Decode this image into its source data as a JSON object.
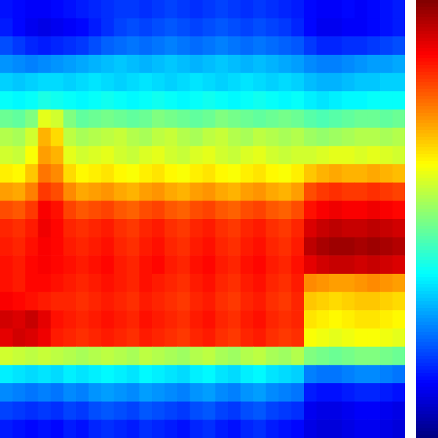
{
  "chart_data": {
    "type": "heatmap",
    "tick_labels": false,
    "grid": false,
    "xlim": [
      0,
      32
    ],
    "ylim": [
      0,
      24
    ],
    "colorbar_range": [
      0,
      1
    ],
    "cells": [
      [
        0.14,
        0.13,
        0.12,
        0.12,
        0.13,
        0.14,
        0.15,
        0.16,
        0.17,
        0.18,
        0.18,
        0.17,
        0.18,
        0.19,
        0.18,
        0.17,
        0.18,
        0.19,
        0.18,
        0.17,
        0.18,
        0.17,
        0.16,
        0.15,
        0.13,
        0.12,
        0.12,
        0.13,
        0.12,
        0.13,
        0.14,
        0.15
      ],
      [
        0.15,
        0.13,
        0.11,
        0.1,
        0.11,
        0.12,
        0.13,
        0.15,
        0.17,
        0.19,
        0.2,
        0.19,
        0.2,
        0.21,
        0.2,
        0.19,
        0.2,
        0.21,
        0.2,
        0.19,
        0.2,
        0.19,
        0.18,
        0.16,
        0.13,
        0.11,
        0.11,
        0.12,
        0.12,
        0.13,
        0.14,
        0.15
      ],
      [
        0.2,
        0.18,
        0.16,
        0.15,
        0.16,
        0.17,
        0.18,
        0.2,
        0.22,
        0.23,
        0.24,
        0.23,
        0.24,
        0.25,
        0.24,
        0.23,
        0.24,
        0.25,
        0.24,
        0.23,
        0.24,
        0.23,
        0.22,
        0.21,
        0.18,
        0.16,
        0.16,
        0.17,
        0.17,
        0.18,
        0.19,
        0.2
      ],
      [
        0.27,
        0.26,
        0.25,
        0.26,
        0.27,
        0.28,
        0.29,
        0.3,
        0.31,
        0.32,
        0.31,
        0.3,
        0.31,
        0.32,
        0.31,
        0.3,
        0.31,
        0.32,
        0.31,
        0.3,
        0.31,
        0.3,
        0.29,
        0.28,
        0.26,
        0.25,
        0.25,
        0.26,
        0.27,
        0.28,
        0.28,
        0.29
      ],
      [
        0.33,
        0.32,
        0.33,
        0.34,
        0.34,
        0.33,
        0.34,
        0.35,
        0.34,
        0.33,
        0.34,
        0.35,
        0.34,
        0.33,
        0.34,
        0.35,
        0.34,
        0.33,
        0.34,
        0.35,
        0.34,
        0.33,
        0.34,
        0.33,
        0.31,
        0.3,
        0.3,
        0.31,
        0.32,
        0.32,
        0.33,
        0.33
      ],
      [
        0.38,
        0.37,
        0.38,
        0.4,
        0.39,
        0.38,
        0.37,
        0.38,
        0.39,
        0.38,
        0.37,
        0.38,
        0.39,
        0.38,
        0.37,
        0.38,
        0.39,
        0.38,
        0.37,
        0.38,
        0.39,
        0.38,
        0.37,
        0.38,
        0.36,
        0.35,
        0.36,
        0.37,
        0.37,
        0.38,
        0.38,
        0.38
      ],
      [
        0.48,
        0.47,
        0.5,
        0.6,
        0.58,
        0.5,
        0.47,
        0.48,
        0.49,
        0.48,
        0.47,
        0.48,
        0.5,
        0.49,
        0.48,
        0.47,
        0.48,
        0.5,
        0.49,
        0.48,
        0.47,
        0.48,
        0.49,
        0.48,
        0.46,
        0.45,
        0.46,
        0.47,
        0.48,
        0.48,
        0.47,
        0.48
      ],
      [
        0.55,
        0.54,
        0.58,
        0.7,
        0.66,
        0.56,
        0.54,
        0.55,
        0.56,
        0.57,
        0.55,
        0.54,
        0.56,
        0.57,
        0.55,
        0.54,
        0.56,
        0.57,
        0.55,
        0.54,
        0.56,
        0.55,
        0.54,
        0.55,
        0.53,
        0.52,
        0.53,
        0.54,
        0.55,
        0.55,
        0.54,
        0.55
      ],
      [
        0.58,
        0.57,
        0.62,
        0.72,
        0.7,
        0.6,
        0.58,
        0.59,
        0.6,
        0.58,
        0.57,
        0.59,
        0.6,
        0.58,
        0.57,
        0.59,
        0.6,
        0.58,
        0.57,
        0.59,
        0.6,
        0.58,
        0.57,
        0.58,
        0.58,
        0.59,
        0.6,
        0.6,
        0.59,
        0.6,
        0.59,
        0.58
      ],
      [
        0.64,
        0.63,
        0.68,
        0.76,
        0.74,
        0.66,
        0.63,
        0.64,
        0.65,
        0.63,
        0.62,
        0.64,
        0.65,
        0.63,
        0.62,
        0.64,
        0.65,
        0.63,
        0.62,
        0.64,
        0.65,
        0.63,
        0.62,
        0.64,
        0.68,
        0.7,
        0.71,
        0.7,
        0.7,
        0.71,
        0.7,
        0.69
      ],
      [
        0.72,
        0.71,
        0.75,
        0.82,
        0.8,
        0.74,
        0.71,
        0.72,
        0.73,
        0.71,
        0.7,
        0.72,
        0.73,
        0.71,
        0.7,
        0.72,
        0.73,
        0.71,
        0.7,
        0.72,
        0.73,
        0.71,
        0.7,
        0.72,
        0.8,
        0.82,
        0.83,
        0.82,
        0.82,
        0.83,
        0.82,
        0.81
      ],
      [
        0.8,
        0.79,
        0.82,
        0.88,
        0.86,
        0.81,
        0.79,
        0.8,
        0.81,
        0.79,
        0.78,
        0.8,
        0.81,
        0.79,
        0.78,
        0.8,
        0.81,
        0.79,
        0.78,
        0.8,
        0.81,
        0.79,
        0.78,
        0.8,
        0.86,
        0.88,
        0.89,
        0.88,
        0.88,
        0.89,
        0.88,
        0.87
      ],
      [
        0.84,
        0.83,
        0.85,
        0.89,
        0.87,
        0.84,
        0.83,
        0.84,
        0.85,
        0.83,
        0.82,
        0.84,
        0.85,
        0.83,
        0.82,
        0.84,
        0.85,
        0.83,
        0.82,
        0.84,
        0.85,
        0.83,
        0.82,
        0.84,
        0.91,
        0.93,
        0.94,
        0.93,
        0.93,
        0.94,
        0.93,
        0.92
      ],
      [
        0.85,
        0.84,
        0.86,
        0.88,
        0.87,
        0.85,
        0.84,
        0.85,
        0.86,
        0.84,
        0.83,
        0.85,
        0.86,
        0.84,
        0.83,
        0.85,
        0.86,
        0.84,
        0.83,
        0.85,
        0.86,
        0.84,
        0.83,
        0.85,
        0.94,
        0.96,
        0.97,
        0.97,
        0.96,
        0.97,
        0.96,
        0.95
      ],
      [
        0.86,
        0.85,
        0.87,
        0.88,
        0.87,
        0.86,
        0.85,
        0.86,
        0.87,
        0.85,
        0.84,
        0.86,
        0.87,
        0.85,
        0.84,
        0.86,
        0.87,
        0.85,
        0.84,
        0.86,
        0.87,
        0.85,
        0.84,
        0.86,
        0.9,
        0.92,
        0.93,
        0.93,
        0.92,
        0.93,
        0.92,
        0.91
      ],
      [
        0.86,
        0.85,
        0.87,
        0.87,
        0.86,
        0.85,
        0.84,
        0.85,
        0.86,
        0.85,
        0.84,
        0.86,
        0.85,
        0.84,
        0.83,
        0.85,
        0.86,
        0.84,
        0.83,
        0.85,
        0.86,
        0.84,
        0.83,
        0.85,
        0.74,
        0.73,
        0.72,
        0.72,
        0.73,
        0.74,
        0.73,
        0.72
      ],
      [
        0.88,
        0.87,
        0.86,
        0.85,
        0.84,
        0.84,
        0.83,
        0.84,
        0.85,
        0.84,
        0.83,
        0.85,
        0.84,
        0.83,
        0.82,
        0.84,
        0.85,
        0.83,
        0.82,
        0.84,
        0.85,
        0.83,
        0.82,
        0.84,
        0.68,
        0.67,
        0.66,
        0.67,
        0.68,
        0.68,
        0.67,
        0.66
      ],
      [
        0.92,
        0.91,
        0.93,
        0.9,
        0.86,
        0.85,
        0.84,
        0.85,
        0.86,
        0.85,
        0.84,
        0.86,
        0.85,
        0.84,
        0.83,
        0.85,
        0.86,
        0.84,
        0.83,
        0.85,
        0.86,
        0.84,
        0.83,
        0.84,
        0.65,
        0.64,
        0.63,
        0.64,
        0.65,
        0.65,
        0.64,
        0.63
      ],
      [
        0.9,
        0.92,
        0.91,
        0.89,
        0.85,
        0.84,
        0.83,
        0.84,
        0.85,
        0.84,
        0.83,
        0.85,
        0.84,
        0.83,
        0.82,
        0.84,
        0.85,
        0.83,
        0.82,
        0.84,
        0.85,
        0.83,
        0.82,
        0.83,
        0.62,
        0.61,
        0.6,
        0.61,
        0.62,
        0.62,
        0.61,
        0.6
      ],
      [
        0.58,
        0.57,
        0.56,
        0.57,
        0.56,
        0.55,
        0.54,
        0.55,
        0.56,
        0.55,
        0.54,
        0.56,
        0.55,
        0.54,
        0.53,
        0.55,
        0.56,
        0.54,
        0.53,
        0.55,
        0.56,
        0.54,
        0.53,
        0.55,
        0.5,
        0.49,
        0.48,
        0.49,
        0.5,
        0.5,
        0.49,
        0.48
      ],
      [
        0.36,
        0.35,
        0.34,
        0.35,
        0.34,
        0.36,
        0.35,
        0.36,
        0.37,
        0.36,
        0.35,
        0.37,
        0.36,
        0.35,
        0.34,
        0.36,
        0.37,
        0.35,
        0.34,
        0.36,
        0.37,
        0.35,
        0.34,
        0.33,
        0.25,
        0.24,
        0.24,
        0.25,
        0.26,
        0.26,
        0.25,
        0.24
      ],
      [
        0.26,
        0.25,
        0.24,
        0.25,
        0.24,
        0.26,
        0.25,
        0.27,
        0.28,
        0.27,
        0.26,
        0.28,
        0.27,
        0.26,
        0.25,
        0.27,
        0.28,
        0.26,
        0.25,
        0.27,
        0.28,
        0.26,
        0.25,
        0.24,
        0.15,
        0.14,
        0.14,
        0.15,
        0.16,
        0.16,
        0.15,
        0.14
      ],
      [
        0.19,
        0.18,
        0.17,
        0.18,
        0.17,
        0.19,
        0.18,
        0.2,
        0.21,
        0.2,
        0.19,
        0.21,
        0.2,
        0.19,
        0.18,
        0.2,
        0.21,
        0.19,
        0.18,
        0.2,
        0.21,
        0.19,
        0.18,
        0.17,
        0.11,
        0.1,
        0.1,
        0.11,
        0.12,
        0.12,
        0.11,
        0.1
      ],
      [
        0.15,
        0.14,
        0.13,
        0.14,
        0.13,
        0.15,
        0.14,
        0.16,
        0.17,
        0.16,
        0.15,
        0.17,
        0.16,
        0.15,
        0.14,
        0.16,
        0.17,
        0.15,
        0.14,
        0.16,
        0.17,
        0.15,
        0.14,
        0.13,
        0.1,
        0.09,
        0.09,
        0.1,
        0.11,
        0.11,
        0.1,
        0.09
      ]
    ]
  }
}
